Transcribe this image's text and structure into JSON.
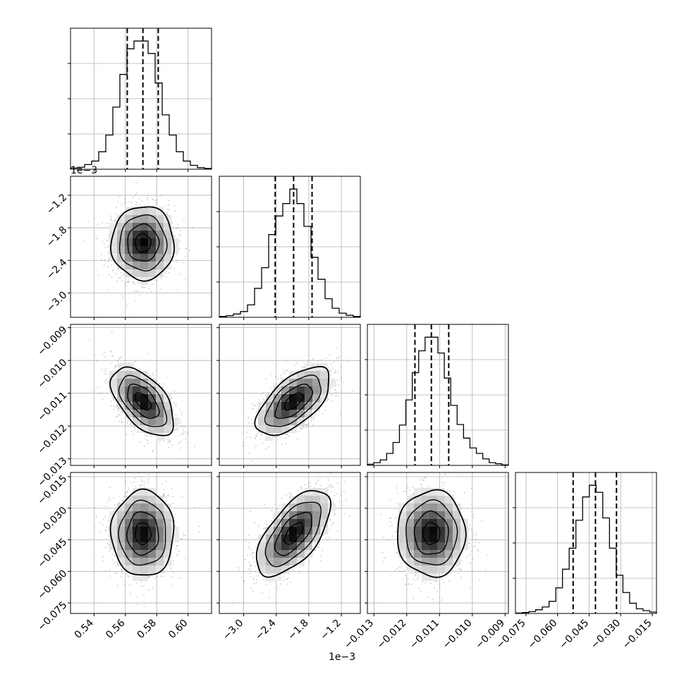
{
  "chart_data": {
    "type": "corner",
    "title": "",
    "grid": true,
    "quantile_line_style": "dashed",
    "params": [
      {
        "range": [
          0.525,
          0.615
        ],
        "ticks": [
          0.54,
          0.56,
          0.58,
          0.6
        ],
        "tick_labels": [
          "0.54",
          "0.56",
          "0.58",
          "0.60"
        ],
        "quantiles": [
          0.5612,
          0.5712,
          0.581
        ],
        "hist": {
          "edges_range": [
            0.525,
            0.615
          ],
          "counts": [
            3,
            5,
            12,
            21,
            45,
            88,
            160,
            244,
            310,
            330,
            330,
            298,
            222,
            140,
            88,
            45,
            21,
            10,
            4,
            2
          ]
        }
      },
      {
        "range": [
          -3.45,
          -0.85
        ],
        "ticks": [
          -3.0,
          -2.4,
          -1.8,
          -1.2
        ],
        "tick_labels": [
          "−3.0",
          "−2.4",
          "−1.8",
          "−1.2"
        ],
        "offset_text": "1e−3",
        "quantiles": [
          -2.42,
          -2.08,
          -1.74
        ],
        "hist": {
          "edges_range": [
            -3.45,
            -0.85
          ],
          "counts": [
            2,
            4,
            8,
            14,
            30,
            70,
            120,
            200,
            245,
            275,
            310,
            275,
            220,
            145,
            92,
            45,
            22,
            10,
            5,
            2
          ]
        }
      },
      {
        "range": [
          -0.0132,
          -0.0089
        ],
        "ticks": [
          -0.013,
          -0.012,
          -0.011,
          -0.01,
          -0.009
        ],
        "tick_labels": [
          "−0.013",
          "−0.012",
          "−0.011",
          "−0.010",
          "−0.009"
        ],
        "quantiles": [
          -0.01175,
          -0.01125,
          -0.01072
        ],
        "hist": {
          "edges_range": [
            -0.0132,
            -0.0089
          ],
          "counts": [
            2,
            5,
            10,
            22,
            42,
            74,
            120,
            170,
            210,
            235,
            235,
            206,
            160,
            110,
            75,
            50,
            32,
            22,
            12,
            5,
            3,
            1
          ]
        }
      },
      {
        "range": [
          -0.08,
          -0.013
        ],
        "ticks": [
          -0.075,
          -0.06,
          -0.045,
          -0.03,
          -0.015
        ],
        "tick_labels": [
          "−0.075",
          "−0.060",
          "−0.045",
          "−0.030",
          "−0.015"
        ],
        "quantiles": [
          -0.0526,
          -0.042,
          -0.032
        ],
        "hist": {
          "edges_range": [
            -0.08,
            -0.013
          ],
          "counts": [
            1,
            2,
            4,
            8,
            14,
            26,
            55,
            95,
            140,
            200,
            250,
            275,
            260,
            205,
            140,
            82,
            45,
            22,
            10,
            6,
            3
          ]
        }
      }
    ],
    "pairs": [
      {
        "row": 1,
        "col": 0,
        "center": [
          0.5712,
          -2.08
        ],
        "sd": [
          0.01,
          0.34
        ],
        "corr": 0.0
      },
      {
        "row": 2,
        "col": 0,
        "center": [
          0.5712,
          -0.01125
        ],
        "sd": [
          0.01,
          0.00052
        ],
        "corr": -0.55
      },
      {
        "row": 2,
        "col": 1,
        "center": [
          -2.08,
          -0.01125
        ],
        "sd": [
          0.34,
          0.00052
        ],
        "corr": 0.62
      },
      {
        "row": 3,
        "col": 0,
        "center": [
          0.5712,
          -0.042
        ],
        "sd": [
          0.01,
          0.0102
        ],
        "corr": 0.0
      },
      {
        "row": 3,
        "col": 1,
        "center": [
          -2.08,
          -0.042
        ],
        "sd": [
          0.34,
          0.0102
        ],
        "corr": 0.62
      },
      {
        "row": 3,
        "col": 2,
        "center": [
          -0.01125,
          -0.042
        ],
        "sd": [
          0.00052,
          0.0102
        ],
        "corr": 0.0
      }
    ],
    "contour_levels_sigma": [
      0.5,
      1.0,
      1.5,
      2.0
    ]
  },
  "colors": {
    "line": "#000000",
    "grid": "#b0b0b0",
    "points": "#8c8c8c",
    "shade_max": "#000000"
  }
}
